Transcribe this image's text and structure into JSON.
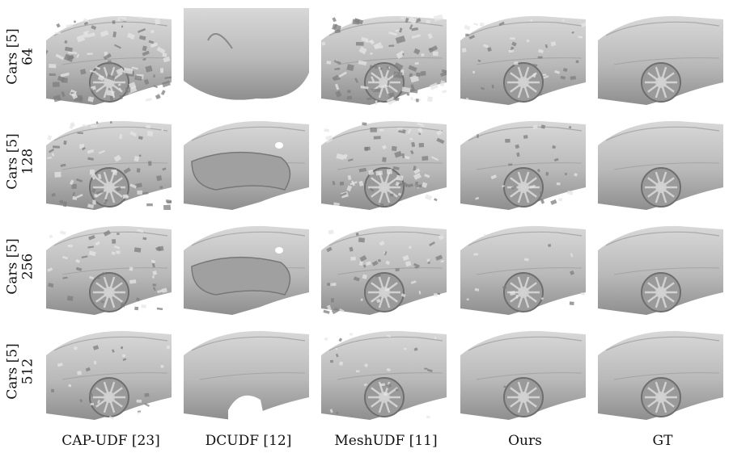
{
  "columns": [
    {
      "label": "CAP-UDF [23]",
      "style": "noisy"
    },
    {
      "label": "DCUDF [12]",
      "style": "smooth"
    },
    {
      "label": "MeshUDF [11]",
      "style": "noisy"
    },
    {
      "label": "Ours",
      "style": "clean"
    },
    {
      "label": "GT",
      "style": "gt"
    }
  ],
  "rows": [
    {
      "dataset": "Cars [5]",
      "resolution": "64"
    },
    {
      "dataset": "Cars [5]",
      "resolution": "128"
    },
    {
      "dataset": "Cars [5]",
      "resolution": "256"
    },
    {
      "dataset": "Cars [5]",
      "resolution": "512"
    }
  ],
  "colors": {
    "surface": "#b9b9b9",
    "shadow": "#8e8e8e",
    "highlight": "#d8d8d8"
  }
}
